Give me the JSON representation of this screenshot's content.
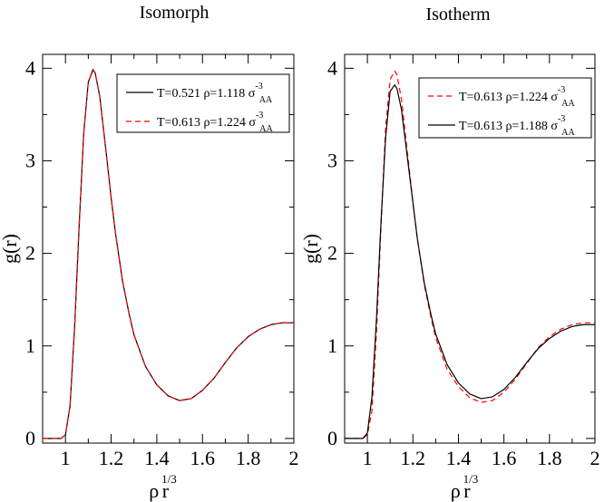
{
  "chart_data": [
    {
      "type": "line",
      "title": "Isomorph",
      "xlabel": {
        "base": "ρ",
        "sup": "1/3",
        "tail": "r"
      },
      "ylabel": "g(r)",
      "xlim": [
        0.9,
        2.0
      ],
      "ylim": [
        -0.05,
        4.15
      ],
      "xticks": [
        "1",
        "1.2",
        "1.4",
        "1.6",
        "1.8",
        "2"
      ],
      "xtick_values": [
        1.0,
        1.2,
        1.4,
        1.6,
        1.8,
        2.0
      ],
      "yticks": [
        "0",
        "1",
        "2",
        "3",
        "4"
      ],
      "ytick_values": [
        0,
        1,
        2,
        3,
        4
      ],
      "legend_position": "top-right",
      "series": [
        {
          "name": "T=0.521 ρ=1.118 σ",
          "legend": {
            "text": "T=0.521 ρ=1.118 σ",
            "sup": "-3",
            "sub": "AA"
          },
          "color": "#000000",
          "dash": "solid",
          "x": [
            0.9,
            0.95,
            0.98,
            1.0,
            1.02,
            1.04,
            1.06,
            1.08,
            1.1,
            1.12,
            1.13,
            1.15,
            1.18,
            1.2,
            1.22,
            1.25,
            1.28,
            1.3,
            1.35,
            1.4,
            1.45,
            1.5,
            1.55,
            1.6,
            1.65,
            1.7,
            1.75,
            1.8,
            1.85,
            1.9,
            1.95,
            2.0
          ],
          "y": [
            0.0,
            0.0,
            0.0,
            0.04,
            0.35,
            1.2,
            2.3,
            3.3,
            3.85,
            3.98,
            3.95,
            3.7,
            3.05,
            2.6,
            2.2,
            1.7,
            1.33,
            1.12,
            0.78,
            0.58,
            0.46,
            0.41,
            0.43,
            0.52,
            0.65,
            0.82,
            0.98,
            1.1,
            1.18,
            1.23,
            1.25,
            1.25
          ]
        },
        {
          "name": "T=0.613 ρ=1.224 σ",
          "legend": {
            "text": "T=0.613 ρ=1.224 σ",
            "sup": "-3",
            "sub": "AA"
          },
          "color": "#ff0000",
          "dash": "dashed",
          "x": [
            0.9,
            0.95,
            0.98,
            1.0,
            1.02,
            1.04,
            1.06,
            1.08,
            1.1,
            1.12,
            1.13,
            1.15,
            1.18,
            1.2,
            1.22,
            1.25,
            1.28,
            1.3,
            1.35,
            1.4,
            1.45,
            1.5,
            1.55,
            1.6,
            1.65,
            1.7,
            1.75,
            1.8,
            1.85,
            1.9,
            1.95,
            2.0
          ],
          "y": [
            0.0,
            0.0,
            0.0,
            0.04,
            0.35,
            1.2,
            2.3,
            3.3,
            3.85,
            3.99,
            3.95,
            3.7,
            3.05,
            2.6,
            2.2,
            1.7,
            1.33,
            1.12,
            0.78,
            0.58,
            0.46,
            0.41,
            0.43,
            0.52,
            0.65,
            0.82,
            0.98,
            1.1,
            1.18,
            1.23,
            1.25,
            1.25
          ]
        }
      ]
    },
    {
      "type": "line",
      "title": "Isotherm",
      "xlabel": {
        "base": "ρ",
        "sup": "1/3",
        "tail": "r"
      },
      "ylabel": "g(r)",
      "xlim": [
        0.9,
        2.0
      ],
      "ylim": [
        -0.05,
        4.15
      ],
      "xticks": [
        "1",
        "1.2",
        "1.4",
        "1.6",
        "1.8",
        "2"
      ],
      "xtick_values": [
        1.0,
        1.2,
        1.4,
        1.6,
        1.8,
        2.0
      ],
      "yticks": [
        "0",
        "1",
        "2",
        "3",
        "4"
      ],
      "ytick_values": [
        0,
        1,
        2,
        3,
        4
      ],
      "legend_position": "top-right",
      "series": [
        {
          "name": "T=0.613 ρ=1.224 σ",
          "legend": {
            "text": "T=0.613 ρ=1.224 σ",
            "sup": "-3",
            "sub": "AA"
          },
          "color": "#ff0000",
          "dash": "dashed",
          "x": [
            0.9,
            0.95,
            0.98,
            1.0,
            1.02,
            1.04,
            1.06,
            1.08,
            1.1,
            1.12,
            1.13,
            1.15,
            1.18,
            1.2,
            1.22,
            1.25,
            1.28,
            1.3,
            1.35,
            1.4,
            1.45,
            1.5,
            1.55,
            1.6,
            1.65,
            1.7,
            1.75,
            1.8,
            1.85,
            1.9,
            1.95,
            2.0
          ],
          "y": [
            0.0,
            0.0,
            0.0,
            0.04,
            0.3,
            1.15,
            2.3,
            3.35,
            3.88,
            3.97,
            3.93,
            3.66,
            3.0,
            2.55,
            2.15,
            1.66,
            1.3,
            1.09,
            0.75,
            0.56,
            0.44,
            0.39,
            0.41,
            0.5,
            0.64,
            0.81,
            0.98,
            1.1,
            1.18,
            1.23,
            1.25,
            1.25
          ]
        },
        {
          "name": "T=0.613 ρ=1.188 σ",
          "legend": {
            "text": "T=0.613 ρ=1.188 σ",
            "sup": "-3",
            "sub": "AA"
          },
          "color": "#000000",
          "dash": "solid",
          "x": [
            0.9,
            0.95,
            0.98,
            1.0,
            1.02,
            1.04,
            1.06,
            1.08,
            1.1,
            1.12,
            1.13,
            1.15,
            1.18,
            1.2,
            1.22,
            1.25,
            1.28,
            1.3,
            1.35,
            1.4,
            1.45,
            1.5,
            1.55,
            1.6,
            1.65,
            1.7,
            1.75,
            1.8,
            1.85,
            1.9,
            1.95,
            2.0
          ],
          "y": [
            0.0,
            0.0,
            0.0,
            0.06,
            0.45,
            1.3,
            2.35,
            3.25,
            3.75,
            3.82,
            3.78,
            3.55,
            2.95,
            2.55,
            2.15,
            1.68,
            1.33,
            1.13,
            0.8,
            0.6,
            0.48,
            0.43,
            0.45,
            0.53,
            0.66,
            0.82,
            0.97,
            1.08,
            1.16,
            1.21,
            1.23,
            1.23
          ]
        }
      ]
    }
  ]
}
